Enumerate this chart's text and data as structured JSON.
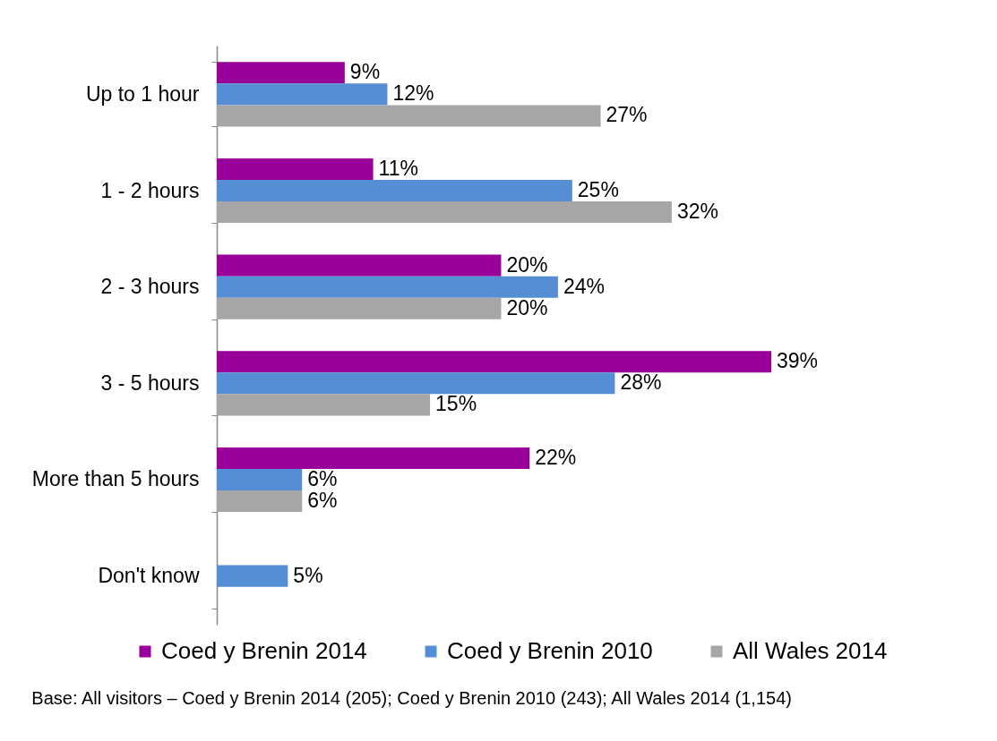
{
  "chart_data": {
    "type": "bar",
    "orientation": "horizontal",
    "legend": "bottom",
    "categories": [
      "Up to 1 hour",
      "1 - 2 hours",
      "2 - 3 hours",
      "3 - 5 hours",
      "More than 5 hours",
      "Don't know"
    ],
    "series": [
      {
        "name": "Coed y Brenin 2014",
        "color": "#990099",
        "values": [
          9,
          11,
          20,
          39,
          22,
          null
        ],
        "value_labels": [
          "9%",
          "11%",
          "20%",
          "39%",
          "22%",
          null
        ]
      },
      {
        "name": "Coed y Brenin 2010",
        "color": "#558ed5",
        "values": [
          12,
          25,
          24,
          28,
          6,
          5
        ],
        "value_labels": [
          "12%",
          "25%",
          "24%",
          "28%",
          "6%",
          "5%"
        ]
      },
      {
        "name": "All Wales 2014",
        "color": "#a6a6a6",
        "values": [
          27,
          32,
          20,
          15,
          6,
          null
        ],
        "value_labels": [
          "27%",
          "32%",
          "20%",
          "15%",
          "6%",
          null
        ]
      }
    ],
    "annotations": [
      "Base: All visitors – Coed y Brenin 2014 (205); Coed y Brenin 2010 (243); All Wales 2014 (1,154)"
    ]
  }
}
